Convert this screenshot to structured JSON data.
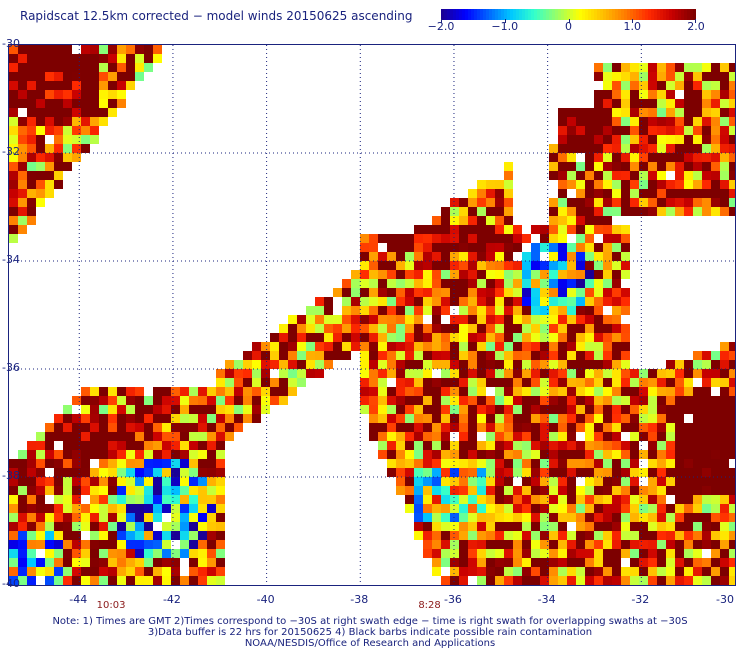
{
  "title": "Rapidscat 12.5km corrected − model winds 20150625 ascending",
  "colorbar": {
    "ticks": [
      {
        "label": "−2.0",
        "value": -2.0
      },
      {
        "label": "−1.0",
        "value": -1.0
      },
      {
        "label": "0",
        "value": 0
      },
      {
        "label": "1.0",
        "value": 1.0
      },
      {
        "label": "2.0",
        "value": 2.0
      }
    ],
    "range": [
      -2.0,
      2.0
    ],
    "colors": [
      "#1a0096",
      "#0000ff",
      "#0064ff",
      "#00c8ff",
      "#33ffcc",
      "#99ff66",
      "#ffff00",
      "#ffbf00",
      "#ff7a00",
      "#ff2a00",
      "#c80000",
      "#7d0000"
    ]
  },
  "map": {
    "lat_range": [
      -40,
      -30
    ],
    "lon_range": [
      -45.5,
      -30
    ],
    "y_ticks": [
      {
        "label": "-30",
        "value": -30
      },
      {
        "label": "-32",
        "value": -32
      },
      {
        "label": "-34",
        "value": -34
      },
      {
        "label": "-36",
        "value": -36
      },
      {
        "label": "-38",
        "value": -38
      },
      {
        "label": "-40",
        "value": -40
      }
    ],
    "x_ticks": [
      {
        "label": "-44",
        "value": -44
      },
      {
        "label": "-42",
        "value": -42
      },
      {
        "label": "-40",
        "value": -40
      },
      {
        "label": "-38",
        "value": -38
      },
      {
        "label": "-36",
        "value": -36
      },
      {
        "label": "-34",
        "value": -34
      },
      {
        "label": "-32",
        "value": -32
      },
      {
        "label": "-30",
        "value": -30
      }
    ],
    "gridlines": true,
    "swath_times": [
      {
        "label": "10:03",
        "lon": -43.3
      },
      {
        "label": "8:28",
        "lon": -36.5
      }
    ]
  },
  "notes": [
    "Note: 1) Times are GMT 2)Times correspond to −30S at right swath edge − time is right swath for overlapping swaths at −30S",
    "3)Data buffer is 22 hrs for 20150625 4) Black barbs indicate possible rain contamination",
    "NOAA/NESDIS/Office of Research and Applications"
  ]
}
